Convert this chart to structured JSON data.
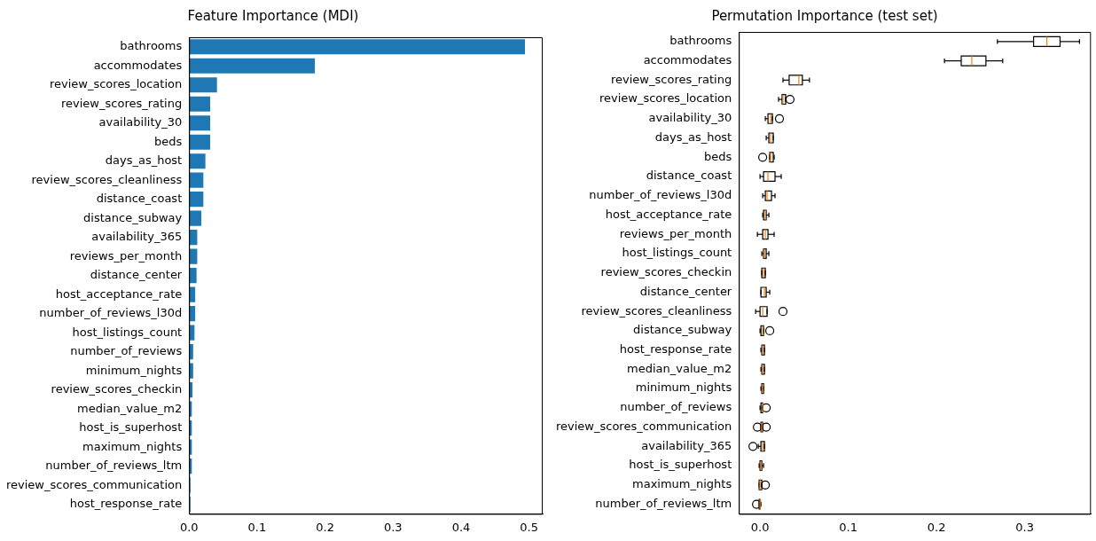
{
  "chart_data": [
    {
      "type": "bar",
      "orientation": "horizontal",
      "title": "Feature Importance (MDI)",
      "categories": [
        "bathrooms",
        "accommodates",
        "review_scores_location",
        "review_scores_rating",
        "availability_30",
        "beds",
        "days_as_host",
        "review_scores_cleanliness",
        "distance_coast",
        "distance_subway",
        "availability_365",
        "reviews_per_month",
        "distance_center",
        "host_acceptance_rate",
        "number_of_reviews_l30d",
        "host_listings_count",
        "number_of_reviews",
        "minimum_nights",
        "review_scores_checkin",
        "median_value_m2",
        "host_is_superhost",
        "maximum_nights",
        "number_of_reviews_ltm",
        "review_scores_communication",
        "host_response_rate"
      ],
      "values": [
        0.494,
        0.185,
        0.041,
        0.031,
        0.031,
        0.031,
        0.024,
        0.021,
        0.021,
        0.018,
        0.012,
        0.012,
        0.011,
        0.009,
        0.009,
        0.008,
        0.006,
        0.006,
        0.005,
        0.004,
        0.004,
        0.004,
        0.004,
        0.002,
        0.002
      ],
      "color": "#1f77b4",
      "xlim": [
        0,
        0.52
      ],
      "xticks": [
        {
          "value": 0,
          "label": "0.0"
        },
        0.1,
        0.2,
        0.3,
        0.4,
        0.5
      ]
    },
    {
      "type": "box",
      "orientation": "horizontal",
      "title": "Permutation Importance (test set)",
      "color": "#000000",
      "categories": [
        "bathrooms",
        "accommodates",
        "review_scores_rating",
        "review_scores_location",
        "availability_30",
        "days_as_host",
        "beds",
        "distance_coast",
        "number_of_reviews_l30d",
        "host_acceptance_rate",
        "reviews_per_month",
        "host_listings_count",
        "review_scores_checkin",
        "distance_center",
        "review_scores_cleanliness",
        "distance_subway",
        "host_response_rate",
        "median_value_m2",
        "minimum_nights",
        "number_of_reviews",
        "review_scores_communication",
        "availability_365",
        "host_is_superhost",
        "maximum_nights",
        "number_of_reviews_ltm"
      ],
      "boxes": [
        {
          "low": 0.269,
          "q1": 0.31,
          "median": 0.325,
          "q3": 0.34,
          "high": 0.362
        },
        {
          "low": 0.209,
          "q1": 0.228,
          "median": 0.24,
          "q3": 0.256,
          "high": 0.275
        },
        {
          "low": 0.026,
          "q1": 0.033,
          "median": 0.044,
          "q3": 0.048,
          "high": 0.056
        },
        {
          "low": 0.021,
          "q1": 0.025,
          "median": 0.026,
          "q3": 0.029,
          "high": 0.029,
          "outliers": [
            0.034
          ]
        },
        {
          "low": 0.006,
          "q1": 0.009,
          "median": 0.012,
          "q3": 0.014,
          "high": 0.014,
          "outliers": [
            0.022
          ]
        },
        {
          "low": 0.007,
          "q1": 0.01,
          "median": 0.012,
          "q3": 0.015,
          "high": 0.015
        },
        {
          "low": 0.011,
          "q1": 0.011,
          "median": 0.012,
          "q3": 0.015,
          "high": 0.016,
          "outliers": [
            0.003
          ]
        },
        {
          "low": 0.0,
          "q1": 0.004,
          "median": 0.009,
          "q3": 0.017,
          "high": 0.024
        },
        {
          "low": 0.003,
          "q1": 0.006,
          "median": 0.008,
          "q3": 0.013,
          "high": 0.017
        },
        {
          "low": 0.003,
          "q1": 0.004,
          "median": 0.006,
          "q3": 0.007,
          "high": 0.01
        },
        {
          "low": -0.003,
          "q1": 0.003,
          "median": 0.006,
          "q3": 0.009,
          "high": 0.016
        },
        {
          "low": 0.002,
          "q1": 0.004,
          "median": 0.005,
          "q3": 0.007,
          "high": 0.01
        },
        {
          "low": 0.002,
          "q1": 0.002,
          "median": 0.004,
          "q3": 0.006,
          "high": 0.006
        },
        {
          "low": 0.001,
          "q1": 0.001,
          "median": 0.005,
          "q3": 0.007,
          "high": 0.011
        },
        {
          "low": -0.005,
          "q1": 0.0,
          "median": 0.003,
          "q3": 0.008,
          "high": 0.008,
          "outliers": [
            0.026
          ]
        },
        {
          "low": 0.0,
          "q1": 0.001,
          "median": 0.003,
          "q3": 0.004,
          "high": 0.004,
          "outliers": [
            0.011
          ]
        },
        {
          "low": 0.001,
          "q1": 0.002,
          "median": 0.003,
          "q3": 0.005,
          "high": 0.005
        },
        {
          "low": 0.001,
          "q1": 0.002,
          "median": 0.003,
          "q3": 0.005,
          "high": 0.005
        },
        {
          "low": 0.001,
          "q1": 0.002,
          "median": 0.003,
          "q3": 0.004,
          "high": 0.004
        },
        {
          "low": 0.0,
          "q1": 0.001,
          "median": 0.003,
          "q3": 0.003,
          "high": 0.003,
          "outliers": [
            0.007
          ]
        },
        {
          "low": 0.001,
          "q1": 0.001,
          "median": 0.002,
          "q3": 0.003,
          "high": 0.003,
          "outliers": [
            -0.003,
            0.007
          ]
        },
        {
          "low": -0.002,
          "q1": 0.001,
          "median": 0.003,
          "q3": 0.005,
          "high": 0.005,
          "outliers": [
            -0.008
          ]
        },
        {
          "low": -0.001,
          "q1": 0.0,
          "median": 0.001,
          "q3": 0.002,
          "high": 0.004
        },
        {
          "low": -0.001,
          "q1": -0.001,
          "median": 0.0,
          "q3": 0.002,
          "high": 0.002,
          "outliers": [
            0.006
          ]
        },
        {
          "low": -0.001,
          "q1": -0.001,
          "median": 0.0,
          "q3": 0.0,
          "high": 0.001,
          "outliers": [
            -0.004
          ]
        }
      ],
      "xlim": [
        -0.024,
        0.375
      ],
      "xticks": [
        {
          "value": 0,
          "label": "0.0"
        },
        0.1,
        0.2,
        0.3
      ]
    }
  ]
}
